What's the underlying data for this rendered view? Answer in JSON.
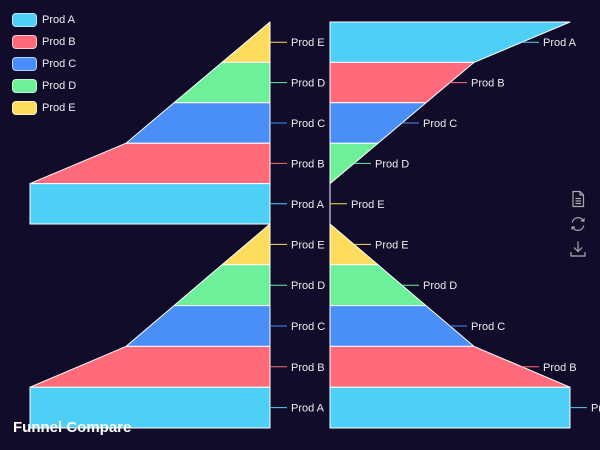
{
  "chart_data": {
    "type": "funnel",
    "title": "Funnel Compare",
    "categories": [
      "Prod A",
      "Prod B",
      "Prod C",
      "Prod D",
      "Prod E"
    ],
    "colors": [
      "#4ecff6",
      "#ff6b7b",
      "#4a8ef8",
      "#6ef09a",
      "#fedc5d"
    ],
    "funnels": [
      {
        "sort": "ascending",
        "align": "right",
        "values": [
          100,
          60,
          40,
          20,
          0
        ]
      },
      {
        "sort": "ascending",
        "align": "right",
        "values": [
          100,
          60,
          40,
          20,
          0
        ]
      },
      {
        "sort": "descending",
        "align": "left",
        "values": [
          100,
          60,
          40,
          20,
          0
        ]
      },
      {
        "sort": "ascending",
        "align": "left",
        "values": [
          100,
          60,
          40,
          20,
          0
        ]
      }
    ],
    "legend_position": "top-left"
  },
  "toolbox": {
    "icons": [
      "data-view-icon",
      "restore-icon",
      "save-image-icon"
    ]
  }
}
